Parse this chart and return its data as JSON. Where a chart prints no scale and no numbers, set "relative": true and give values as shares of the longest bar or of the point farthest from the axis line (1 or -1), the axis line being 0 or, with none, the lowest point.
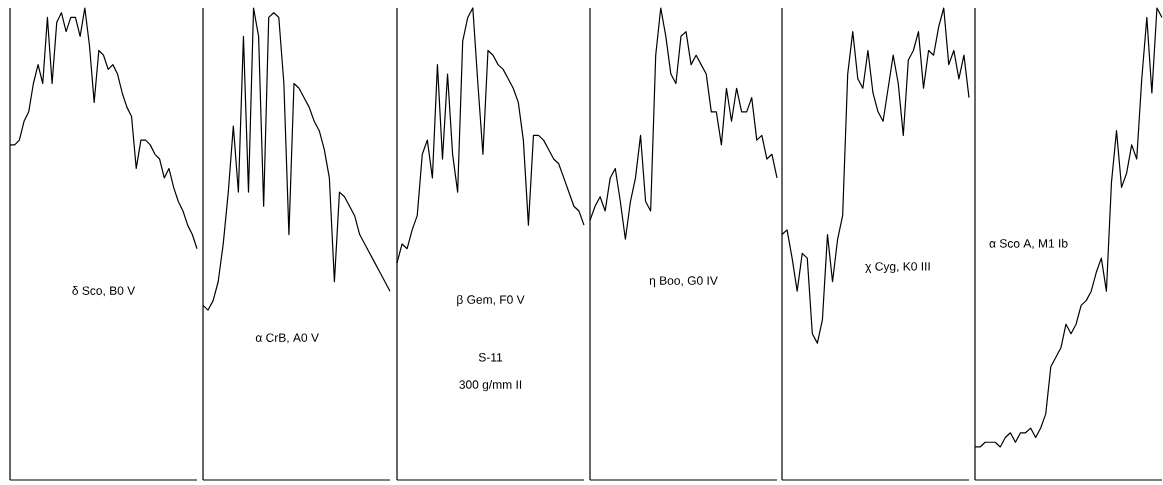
{
  "chart_data": [
    {
      "type": "line",
      "relative": true,
      "categories": [
        null,
        null,
        null,
        null,
        null,
        null,
        null,
        null,
        null,
        null,
        null,
        null,
        null,
        null,
        null,
        null,
        null,
        null,
        null,
        null,
        null,
        null,
        null,
        null,
        null,
        null,
        null,
        null,
        null,
        null,
        null,
        null,
        null,
        null,
        null,
        null,
        null,
        null,
        null,
        null,
        null
      ],
      "series": [
        {
          "name": "δ Sco, B0 V",
          "color": "#000000",
          "values": [
            0.71,
            0.71,
            0.72,
            0.76,
            0.78,
            0.84,
            0.88,
            0.84,
            0.98,
            0.84,
            0.97,
            0.99,
            0.95,
            0.98,
            0.98,
            0.94,
            1.0,
            0.92,
            0.8,
            0.91,
            0.9,
            0.87,
            0.88,
            0.86,
            0.82,
            0.79,
            0.77,
            0.66,
            0.72,
            0.72,
            0.71,
            0.69,
            0.68,
            0.64,
            0.66,
            0.62,
            0.59,
            0.57,
            0.54,
            0.52,
            0.49
          ]
        }
      ]
    },
    {
      "type": "line",
      "relative": true,
      "categories": [
        null,
        null,
        null,
        null,
        null,
        null,
        null,
        null,
        null,
        null,
        null,
        null,
        null,
        null,
        null,
        null,
        null,
        null,
        null,
        null,
        null,
        null,
        null,
        null,
        null,
        null,
        null,
        null,
        null,
        null,
        null,
        null,
        null,
        null,
        null,
        null,
        null,
        null
      ],
      "series": [
        {
          "name": "α CrB, A0 V",
          "color": "#000000",
          "values": [
            0.37,
            0.36,
            0.38,
            0.42,
            0.5,
            0.61,
            0.75,
            0.61,
            0.94,
            0.61,
            1.0,
            0.94,
            0.58,
            0.98,
            0.99,
            0.98,
            0.84,
            0.52,
            0.84,
            0.83,
            0.81,
            0.79,
            0.76,
            0.74,
            0.7,
            0.64,
            0.42,
            0.61,
            0.6,
            0.58,
            0.56,
            0.52,
            0.5,
            0.48,
            0.46,
            0.44,
            0.42,
            0.4
          ]
        }
      ]
    },
    {
      "type": "line",
      "relative": true,
      "categories": [
        null,
        null,
        null,
        null,
        null,
        null,
        null,
        null,
        null,
        null,
        null,
        null,
        null,
        null,
        null,
        null,
        null,
        null,
        null,
        null,
        null,
        null,
        null,
        null,
        null,
        null,
        null,
        null,
        null,
        null,
        null,
        null,
        null,
        null,
        null,
        null,
        null,
        null
      ],
      "series": [
        {
          "name": "β Gem, F0 V",
          "color": "#000000",
          "values": [
            0.46,
            0.5,
            0.49,
            0.53,
            0.56,
            0.69,
            0.72,
            0.64,
            0.88,
            0.68,
            0.86,
            0.69,
            0.61,
            0.93,
            0.98,
            1.0,
            0.84,
            0.69,
            0.91,
            0.9,
            0.88,
            0.87,
            0.85,
            0.83,
            0.8,
            0.72,
            0.54,
            0.73,
            0.73,
            0.72,
            0.7,
            0.68,
            0.67,
            0.64,
            0.61,
            0.58,
            0.57,
            0.54
          ]
        }
      ],
      "annotations": [
        "S-11",
        "300 g/mm II"
      ]
    },
    {
      "type": "line",
      "relative": true,
      "categories": [
        null,
        null,
        null,
        null,
        null,
        null,
        null,
        null,
        null,
        null,
        null,
        null,
        null,
        null,
        null,
        null,
        null,
        null,
        null,
        null,
        null,
        null,
        null,
        null,
        null,
        null,
        null,
        null,
        null,
        null,
        null,
        null,
        null,
        null,
        null,
        null,
        null,
        null
      ],
      "series": [
        {
          "name": "η Boo, G0 IV",
          "color": "#000000",
          "values": [
            0.55,
            0.58,
            0.6,
            0.57,
            0.64,
            0.66,
            0.59,
            0.51,
            0.59,
            0.64,
            0.73,
            0.59,
            0.57,
            0.9,
            1.0,
            0.94,
            0.86,
            0.84,
            0.94,
            0.95,
            0.88,
            0.9,
            0.88,
            0.86,
            0.78,
            0.78,
            0.71,
            0.83,
            0.76,
            0.83,
            0.78,
            0.78,
            0.81,
            0.72,
            0.73,
            0.68,
            0.69,
            0.64
          ]
        }
      ]
    },
    {
      "type": "line",
      "relative": true,
      "categories": [
        null,
        null,
        null,
        null,
        null,
        null,
        null,
        null,
        null,
        null,
        null,
        null,
        null,
        null,
        null,
        null,
        null,
        null,
        null,
        null,
        null,
        null,
        null,
        null,
        null,
        null,
        null,
        null,
        null,
        null,
        null,
        null,
        null,
        null,
        null,
        null,
        null,
        null
      ],
      "series": [
        {
          "name": "χ Cyg, K0 III",
          "color": "#000000",
          "values": [
            0.52,
            0.53,
            0.47,
            0.4,
            0.48,
            0.47,
            0.31,
            0.29,
            0.34,
            0.52,
            0.42,
            0.51,
            0.56,
            0.86,
            0.95,
            0.85,
            0.83,
            0.91,
            0.82,
            0.78,
            0.76,
            0.83,
            0.9,
            0.84,
            0.73,
            0.89,
            0.91,
            0.95,
            0.83,
            0.91,
            0.9,
            0.96,
            1.0,
            0.88,
            0.91,
            0.85,
            0.9,
            0.81
          ]
        }
      ]
    },
    {
      "type": "line",
      "relative": true,
      "categories": [
        null,
        null,
        null,
        null,
        null,
        null,
        null,
        null,
        null,
        null,
        null,
        null,
        null,
        null,
        null,
        null,
        null,
        null,
        null,
        null,
        null,
        null,
        null,
        null,
        null,
        null,
        null,
        null,
        null,
        null,
        null,
        null,
        null,
        null,
        null,
        null,
        null,
        null
      ],
      "series": [
        {
          "name": "α Sco A, M1 Ib",
          "color": "#000000",
          "values": [
            0.07,
            0.07,
            0.08,
            0.08,
            0.08,
            0.07,
            0.09,
            0.1,
            0.08,
            0.1,
            0.1,
            0.11,
            0.09,
            0.11,
            0.14,
            0.24,
            0.26,
            0.28,
            0.33,
            0.31,
            0.33,
            0.37,
            0.38,
            0.4,
            0.44,
            0.47,
            0.4,
            0.63,
            0.74,
            0.62,
            0.65,
            0.71,
            0.68,
            0.85,
            0.98,
            0.82,
            1.0,
            0.98
          ]
        }
      ]
    }
  ]
}
